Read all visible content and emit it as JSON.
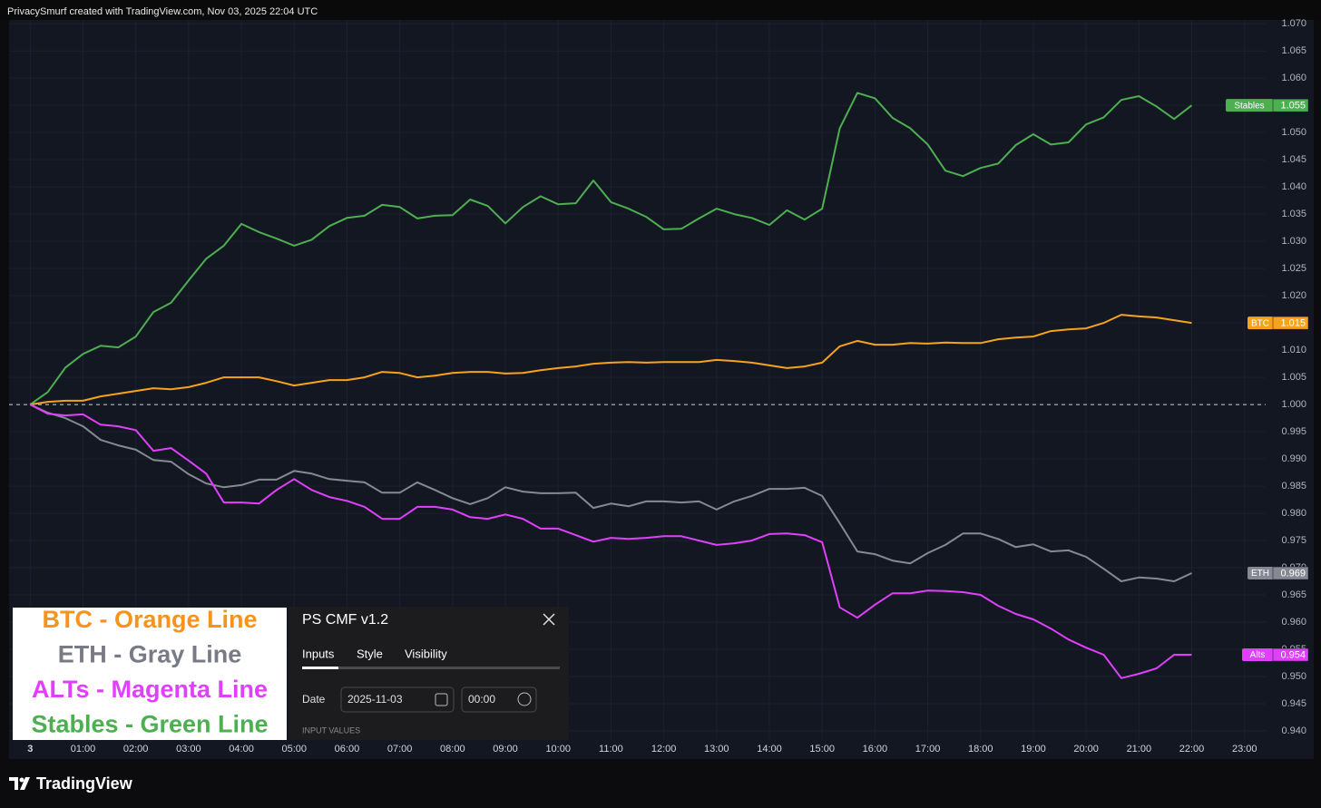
{
  "header": {
    "text": "PrivacySmurf created with TradingView.com, Nov 03, 2025 22:04 UTC"
  },
  "chart_data": {
    "type": "line",
    "x": [
      0,
      20,
      40,
      60,
      80,
      100,
      120,
      140,
      160,
      180,
      200,
      220,
      240,
      260,
      280,
      300,
      320,
      340,
      360,
      380,
      400,
      420,
      440,
      460,
      480,
      500,
      520,
      540,
      560,
      580,
      600,
      620,
      640,
      660,
      680,
      700,
      720,
      740,
      760,
      780,
      800,
      820,
      840,
      860,
      880,
      900,
      920,
      940,
      960,
      980,
      1000,
      1020,
      1040,
      1060,
      1080,
      1100,
      1120,
      1140,
      1160,
      1180,
      1200,
      1220,
      1240,
      1260,
      1280,
      1300,
      1320
    ],
    "series": [
      {
        "name": "Stables",
        "color": "#4caf50",
        "values": [
          1.0,
          1.0023,
          1.0068,
          1.0093,
          1.0108,
          1.0105,
          1.0125,
          1.017,
          1.0187,
          1.0228,
          1.0268,
          1.0292,
          1.0332,
          1.0317,
          1.0305,
          1.0292,
          1.0303,
          1.0328,
          1.0343,
          1.0347,
          1.0367,
          1.0363,
          1.0342,
          1.0347,
          1.0348,
          1.0377,
          1.0365,
          1.0333,
          1.0363,
          1.0383,
          1.0368,
          1.037,
          1.0412,
          1.0372,
          1.036,
          1.0345,
          1.0322,
          1.0323,
          1.0342,
          1.036,
          1.035,
          1.0343,
          1.033,
          1.0357,
          1.034,
          1.036,
          1.0508,
          1.0573,
          1.0563,
          1.0527,
          1.0508,
          1.0478,
          1.043,
          1.042,
          1.0435,
          1.0443,
          1.0477,
          1.0497,
          1.0478,
          1.0482,
          1.0515,
          1.0528,
          1.056,
          1.0567,
          1.0548,
          1.0525,
          1.055
        ]
      },
      {
        "name": "BTC",
        "color": "#f7a21b",
        "values": [
          1.0,
          1.0005,
          1.0007,
          1.0007,
          1.0015,
          1.002,
          1.0025,
          1.003,
          1.0028,
          1.0032,
          1.004,
          1.005,
          1.005,
          1.005,
          1.0043,
          1.0035,
          1.004,
          1.0045,
          1.0045,
          1.005,
          1.006,
          1.0058,
          1.005,
          1.0053,
          1.0058,
          1.006,
          1.006,
          1.0057,
          1.0058,
          1.0063,
          1.0067,
          1.007,
          1.0075,
          1.0077,
          1.0078,
          1.0077,
          1.0078,
          1.0078,
          1.0078,
          1.0082,
          1.008,
          1.0077,
          1.0072,
          1.0067,
          1.007,
          1.0077,
          1.0107,
          1.0117,
          1.011,
          1.011,
          1.0113,
          1.0112,
          1.0114,
          1.0113,
          1.0113,
          1.012,
          1.0123,
          1.0125,
          1.0135,
          1.0138,
          1.014,
          1.015,
          1.0165,
          1.0162,
          1.016,
          1.0155,
          1.015
        ]
      },
      {
        "name": "ETH",
        "color": "#868993",
        "values": [
          1.0,
          0.9985,
          0.9975,
          0.996,
          0.9935,
          0.9925,
          0.9917,
          0.9898,
          0.9895,
          0.9872,
          0.9855,
          0.9848,
          0.9852,
          0.9862,
          0.9862,
          0.9878,
          0.9873,
          0.9863,
          0.986,
          0.9857,
          0.9838,
          0.9838,
          0.9857,
          0.9843,
          0.9828,
          0.9817,
          0.9828,
          0.9848,
          0.984,
          0.9837,
          0.9837,
          0.9838,
          0.981,
          0.9818,
          0.9813,
          0.9822,
          0.9822,
          0.982,
          0.9822,
          0.9807,
          0.9822,
          0.9832,
          0.9845,
          0.9845,
          0.9847,
          0.9832,
          0.9782,
          0.973,
          0.9725,
          0.9713,
          0.9708,
          0.9727,
          0.9742,
          0.9763,
          0.9763,
          0.9753,
          0.9738,
          0.9743,
          0.973,
          0.9732,
          0.972,
          0.9698,
          0.9675,
          0.9682,
          0.968,
          0.9675,
          0.969
        ]
      },
      {
        "name": "Alts",
        "color": "#e040fb",
        "values": [
          1.0,
          0.9983,
          0.998,
          0.9982,
          0.9963,
          0.996,
          0.9953,
          0.9915,
          0.992,
          0.9897,
          0.9873,
          0.982,
          0.982,
          0.9818,
          0.9843,
          0.9863,
          0.9843,
          0.983,
          0.9823,
          0.9812,
          0.979,
          0.979,
          0.9812,
          0.9812,
          0.9807,
          0.9793,
          0.979,
          0.9798,
          0.979,
          0.9772,
          0.9772,
          0.976,
          0.9748,
          0.9755,
          0.9753,
          0.9755,
          0.9758,
          0.9758,
          0.975,
          0.9742,
          0.9745,
          0.975,
          0.9762,
          0.9763,
          0.976,
          0.9747,
          0.9627,
          0.9608,
          0.9632,
          0.9653,
          0.9653,
          0.9658,
          0.9657,
          0.9655,
          0.965,
          0.963,
          0.9615,
          0.9605,
          0.9588,
          0.9568,
          0.9553,
          0.954,
          0.9497,
          0.9505,
          0.9515,
          0.954,
          0.954
        ]
      }
    ],
    "xlim": [
      -24,
      1404
    ],
    "xticks": [
      {
        "value": 0,
        "label": "3"
      },
      {
        "value": 60,
        "label": "01:00"
      },
      {
        "value": 120,
        "label": "02:00"
      },
      {
        "value": 180,
        "label": "03:00"
      },
      {
        "value": 240,
        "label": "04:00"
      },
      {
        "value": 300,
        "label": "05:00"
      },
      {
        "value": 360,
        "label": "06:00"
      },
      {
        "value": 420,
        "label": "07:00"
      },
      {
        "value": 480,
        "label": "08:00"
      },
      {
        "value": 540,
        "label": "09:00"
      },
      {
        "value": 600,
        "label": "10:00"
      },
      {
        "value": 660,
        "label": "11:00"
      },
      {
        "value": 720,
        "label": "12:00"
      },
      {
        "value": 780,
        "label": "13:00"
      },
      {
        "value": 840,
        "label": "14:00"
      },
      {
        "value": 900,
        "label": "15:00"
      },
      {
        "value": 960,
        "label": "16:00"
      },
      {
        "value": 1020,
        "label": "17:00"
      },
      {
        "value": 1080,
        "label": "18:00"
      },
      {
        "value": 1140,
        "label": "19:00"
      },
      {
        "value": 1200,
        "label": "20:00"
      },
      {
        "value": 1260,
        "label": "21:00"
      },
      {
        "value": 1320,
        "label": "22:00"
      },
      {
        "value": 1380,
        "label": "23:00"
      }
    ],
    "ylim": [
      0.9385,
      1.0707
    ],
    "yticks": [
      {
        "value": 0.94,
        "label": "0.940"
      },
      {
        "value": 0.945,
        "label": "0.945"
      },
      {
        "value": 0.95,
        "label": "0.950"
      },
      {
        "value": 0.955,
        "label": "0.955"
      },
      {
        "value": 0.96,
        "label": "0.960"
      },
      {
        "value": 0.965,
        "label": "0.965"
      },
      {
        "value": 0.97,
        "label": "0.970"
      },
      {
        "value": 0.975,
        "label": "0.975"
      },
      {
        "value": 0.98,
        "label": "0.980"
      },
      {
        "value": 0.985,
        "label": "0.985"
      },
      {
        "value": 0.99,
        "label": "0.990"
      },
      {
        "value": 0.995,
        "label": "0.995"
      },
      {
        "value": 1.0,
        "label": "1.000"
      },
      {
        "value": 1.005,
        "label": "1.005"
      },
      {
        "value": 1.01,
        "label": "1.010"
      },
      {
        "value": 1.015,
        "label": "1.015"
      },
      {
        "value": 1.02,
        "label": "1.020"
      },
      {
        "value": 1.025,
        "label": "1.025"
      },
      {
        "value": 1.03,
        "label": "1.030"
      },
      {
        "value": 1.035,
        "label": "1.035"
      },
      {
        "value": 1.04,
        "label": "1.040"
      },
      {
        "value": 1.045,
        "label": "1.045"
      },
      {
        "value": 1.05,
        "label": "1.050"
      },
      {
        "value": 1.055,
        "label": "1.055"
      },
      {
        "value": 1.06,
        "label": "1.060"
      },
      {
        "value": 1.065,
        "label": "1.065"
      },
      {
        "value": 1.07,
        "label": "1.070"
      }
    ],
    "baseline": 1,
    "grid": true,
    "annotations": [
      {
        "text": "BTC - Orange Line",
        "color": "#f7931a"
      },
      {
        "text": "ETH - Gray Line",
        "color": "#787b86"
      },
      {
        "text": "ALTs - Magenta Line",
        "color": "#e040fb"
      },
      {
        "text": "Stables - Green Line",
        "color": "#4caf50"
      }
    ]
  },
  "dialog": {
    "title": "PS CMF v1.2",
    "tabs": [
      "Inputs",
      "Style",
      "Visibility"
    ],
    "field": {
      "label": "Date",
      "date": "2025-11-03",
      "time": "00:00"
    },
    "section": "INPUT VALUES"
  },
  "footer": {
    "brand": "TradingView"
  }
}
